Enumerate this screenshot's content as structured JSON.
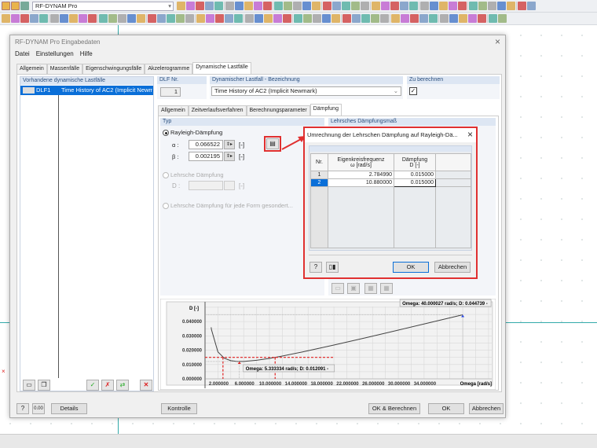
{
  "toolbar": {
    "project_combo": "RF-DYNAM Pro"
  },
  "dialog": {
    "title": "RF-DYNAM Pro Eingabedaten",
    "menu": [
      "Datei",
      "Einstellungen",
      "Hilfe"
    ],
    "tabs": [
      "Allgemein",
      "Massenfälle",
      "Eigenschwingungsfälle",
      "Akzelerogramme",
      "Dynamische Lastfälle"
    ],
    "active_tab": "Dynamische Lastfälle",
    "list": {
      "header": "Vorhandene dynamische Lastfälle",
      "rows": [
        {
          "id": "DLF1",
          "name": "Time History of AC2 (Implicit Newmark"
        }
      ]
    },
    "dlf_nr": {
      "label": "DLF Nr.",
      "value": "1"
    },
    "bezeichnung": {
      "label": "Dynamischer Lastfall - Bezeichnung",
      "value": "Time History of AC2 (Implicit Newmark)"
    },
    "zu_berechnen": {
      "label": "Zu berechnen",
      "checked": true
    },
    "subtabs": [
      "Allgemein",
      "Zeitverlaufsverfahren",
      "Berechnungsparameter",
      "Dämpfung"
    ],
    "active_subtab": "Dämpfung",
    "typ": {
      "header": "Typ",
      "rayleigh": "Rayleigh-Dämpfung",
      "alpha_label": "α :",
      "alpha": "0.066522",
      "beta_label": "β :",
      "beta": "0.002195",
      "unit": "[-]",
      "lehr": "Lehrsche Dämpfung",
      "d_label": "D :",
      "lehr_form": "Lehrsche Dämpfung für jede Form gesondert..."
    },
    "right_header": "Lehrsches Dämpfungsmaß",
    "buttons": {
      "details": "Details",
      "kontrolle": "Kontrolle",
      "ok_calc": "OK & Berechnen",
      "ok": "OK",
      "cancel": "Abbrechen"
    }
  },
  "popup": {
    "title": "Umrechnung der Lehrschen Dämpfung auf Rayleigh-Dä...",
    "columns": [
      {
        "h1": "Nr.",
        "h2": ""
      },
      {
        "h1": "Eigenkreisfrequenz",
        "h2": "ω [rad/s]"
      },
      {
        "h1": "Dämpfung",
        "h2": "D [-]"
      }
    ],
    "rows": [
      [
        "1",
        "2.784990",
        "0.015000"
      ],
      [
        "2",
        "10.880000",
        "0.015000"
      ]
    ],
    "ok": "OK",
    "cancel": "Abbrechen"
  },
  "chart_data": {
    "type": "line",
    "ylabel": "D [-]",
    "xlabel": "Omega [rad/s]",
    "xticks": [
      "2.000000",
      "6.000000",
      "10.000000",
      "14.000000",
      "18.000000",
      "22.000000",
      "26.000000",
      "30.000000",
      "34.000000"
    ],
    "yticks": [
      "0.000000",
      "0.010000",
      "0.020000",
      "0.030000",
      "0.040000"
    ],
    "xlim": [
      0,
      44.5
    ],
    "ylim": [
      0,
      0.0505
    ],
    "grid": true,
    "series": [
      {
        "x": [
          0.95,
          1,
          2,
          3,
          4,
          5,
          6,
          8,
          10,
          12,
          15,
          20,
          25,
          30,
          35,
          40
        ],
        "y": [
          0.036,
          0.03436,
          0.01883,
          0.01438,
          0.01271,
          0.01214,
          0.01213,
          0.01294,
          0.0143,
          0.01594,
          0.01868,
          0.02361,
          0.02877,
          0.03404,
          0.03936,
          0.04473
        ]
      }
    ],
    "target_lines": {
      "D": 0.015,
      "omega": [
        2.78499,
        10.88
      ]
    },
    "annotations": [
      {
        "text": "Omega: 5.333334 rad/s; D: 0.012091 -",
        "x": 5.333334,
        "y": 0.012091
      },
      {
        "text": "Omega: 40.000027 rad/s; D: 0.044739 -",
        "x": 40.000027,
        "y": 0.044739
      }
    ],
    "colors": {
      "curve": "#444444",
      "target": "#e02020",
      "min_marker": "#e02020",
      "max_marker": "#2040e0"
    }
  }
}
